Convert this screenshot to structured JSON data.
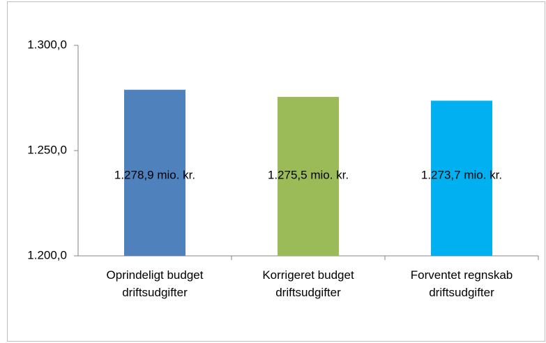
{
  "chart_data": {
    "type": "bar",
    "categories": [
      "Oprindeligt budget driftsudgifter",
      "Korrigeret budget driftsudgifter",
      "Forventet regnskab driftsudgifter"
    ],
    "values": [
      1278.9,
      1275.5,
      1273.7
    ],
    "value_labels": [
      "1.278,9 mio. kr.",
      "1.275,5 mio. kr.",
      "1.273,7 mio. kr."
    ],
    "colors": [
      "#4f81bd",
      "#9bbb59",
      "#00b0f0"
    ],
    "ylim": [
      1200,
      1300
    ],
    "yticks": [
      {
        "value": 1200,
        "label": "1.200,0"
      },
      {
        "value": 1250,
        "label": "1.250,0"
      },
      {
        "value": 1300,
        "label": "1.300,0"
      }
    ],
    "grid": false
  }
}
